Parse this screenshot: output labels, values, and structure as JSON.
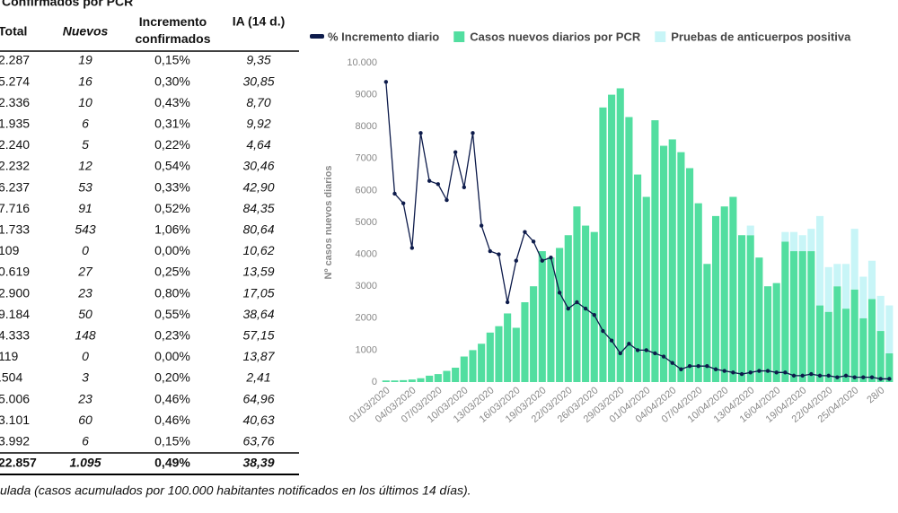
{
  "table": {
    "title": "Confirmados por PCR",
    "columns": [
      "Total",
      "Nuevos",
      "Incremento confirmados",
      "IA (14 d.)"
    ],
    "rows": [
      [
        "2.287",
        "19",
        "0,15%",
        "9,35"
      ],
      [
        "5.274",
        "16",
        "0,30%",
        "30,85"
      ],
      [
        "2.336",
        "10",
        "0,43%",
        "8,70"
      ],
      [
        "1.935",
        "6",
        "0,31%",
        "9,92"
      ],
      [
        "2.240",
        "5",
        "0,22%",
        "4,64"
      ],
      [
        "2.232",
        "12",
        "0,54%",
        "30,46"
      ],
      [
        "6.237",
        "53",
        "0,33%",
        "42,90"
      ],
      [
        "7.716",
        "91",
        "0,52%",
        "84,35"
      ],
      [
        "1.733",
        "543",
        "1,06%",
        "80,64"
      ],
      [
        "109",
        "0",
        "0,00%",
        "10,62"
      ],
      [
        "0.619",
        "27",
        "0,25%",
        "13,59"
      ],
      [
        "2.900",
        "23",
        "0,80%",
        "17,05"
      ],
      [
        "9.184",
        "50",
        "0,55%",
        "38,64"
      ],
      [
        "4.333",
        "148",
        "0,23%",
        "57,15"
      ],
      [
        "119",
        "0",
        "0,00%",
        "13,87"
      ],
      [
        ".504",
        "3",
        "0,20%",
        "2,41"
      ],
      [
        "5.006",
        "23",
        "0,46%",
        "64,96"
      ],
      [
        "3.101",
        "60",
        "0,46%",
        "40,63"
      ],
      [
        "3.992",
        "6",
        "0,15%",
        "63,76"
      ]
    ],
    "total": [
      "22.857",
      "1.095",
      "0,49%",
      "38,39"
    ]
  },
  "footnote": "ulada (casos acumulados por 100.000 habitantes notificados en los últimos 14 días).",
  "chart_data": {
    "type": "bar",
    "y_label": "Nº casos nuevos diarios",
    "categories": [
      "01/03/2020",
      null,
      null,
      "04/03/2020",
      null,
      null,
      "07/03/2020",
      null,
      null,
      "10/03/2020",
      null,
      null,
      "13/03/2020",
      null,
      null,
      "16/03/2020",
      null,
      null,
      "19/03/2020",
      null,
      null,
      "22/03/2020",
      null,
      null,
      "26/03/2020",
      null,
      null,
      "29/03/2020",
      null,
      null,
      "01/04/2020",
      null,
      null,
      "04/04/2020",
      null,
      null,
      "07/04/2020",
      null,
      null,
      "10/04/2020",
      null,
      null,
      "13/04/2020",
      null,
      null,
      "16/04/2020",
      null,
      null,
      "19/04/2020",
      null,
      null,
      "22/04/2020",
      null,
      null,
      "25/04/2020",
      null,
      null,
      "28/0",
      null
    ],
    "series": [
      {
        "name": "% Incremento diario",
        "type": "line",
        "color": "#0d1b4b",
        "values": [
          9400,
          5900,
          5600,
          4200,
          7800,
          6300,
          6200,
          5700,
          7200,
          6100,
          7800,
          4900,
          4100,
          4000,
          2500,
          3800,
          4700,
          4400,
          3800,
          3900,
          2800,
          2300,
          2500,
          2300,
          2100,
          1600,
          1300,
          900,
          1200,
          1000,
          1000,
          900,
          800,
          600,
          400,
          500,
          500,
          500,
          400,
          350,
          300,
          250,
          300,
          350,
          350,
          300,
          300,
          200,
          200,
          250,
          200,
          200,
          150,
          200,
          150,
          150,
          150,
          100,
          100
        ]
      },
      {
        "name": "Casos nuevos diarios por PCR",
        "type": "bar",
        "color": "#52dea0",
        "values": [
          50,
          50,
          60,
          80,
          120,
          200,
          250,
          350,
          450,
          800,
          1000,
          1200,
          1550,
          1750,
          2150,
          1700,
          2500,
          3000,
          4100,
          3900,
          4200,
          4600,
          5500,
          4900,
          4700,
          8600,
          9000,
          9200,
          8300,
          6500,
          5800,
          8200,
          7400,
          7600,
          7200,
          6700,
          5600,
          3700,
          5200,
          5500,
          5800,
          4600,
          4600,
          3900,
          3000,
          3100,
          4400,
          4100,
          4100,
          4100,
          2400,
          2200,
          3000,
          2300,
          2900,
          2000,
          2600,
          1600,
          900
        ]
      },
      {
        "name": "Pruebas de anticuerpos positiva",
        "type": "bar",
        "color": "#c8f5f7",
        "values": [
          0,
          0,
          0,
          0,
          0,
          0,
          0,
          0,
          0,
          0,
          0,
          0,
          0,
          0,
          0,
          0,
          0,
          0,
          0,
          0,
          0,
          0,
          0,
          0,
          0,
          0,
          0,
          0,
          0,
          0,
          0,
          0,
          0,
          0,
          0,
          0,
          0,
          0,
          0,
          0,
          0,
          0,
          300,
          0,
          0,
          0,
          300,
          600,
          500,
          700,
          2800,
          1400,
          700,
          1400,
          1900,
          1300,
          1200,
          1100,
          1500
        ]
      }
    ],
    "ylim": [
      0,
      10000
    ],
    "yticks": [
      0,
      1000,
      2000,
      3000,
      4000,
      5000,
      6000,
      7000,
      8000,
      9000,
      {
        "value": 10000,
        "label": "10.000"
      }
    ]
  }
}
